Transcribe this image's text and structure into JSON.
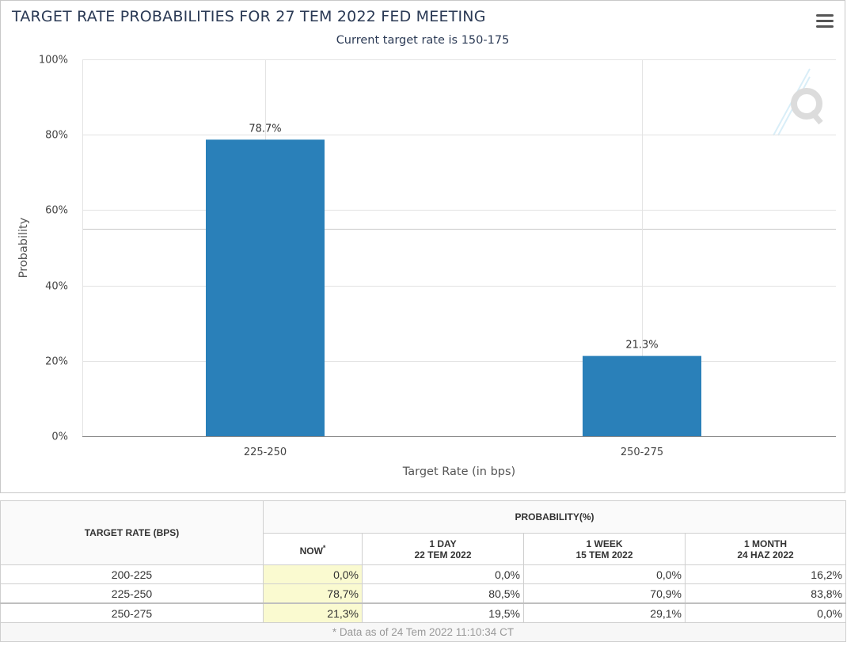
{
  "chart": {
    "title": "TARGET RATE PROBABILITIES FOR 27 TEM 2022 FED MEETING",
    "subtitle": "Current target rate is 150-175",
    "menu_icon": "hamburger-menu-icon",
    "watermark_icon": "q-logo-icon",
    "bar_color": "#2a80b9"
  },
  "chart_data": {
    "type": "bar",
    "title": "TARGET RATE PROBABILITIES FOR 27 TEM 2022 FED MEETING",
    "subtitle": "Current target rate is 150-175",
    "categories": [
      "225-250",
      "250-275"
    ],
    "values": [
      78.7,
      21.3
    ],
    "data_labels": [
      "78.7%",
      "21.3%"
    ],
    "xlabel": "Target Rate (in bps)",
    "ylabel": "Probability",
    "ylim": [
      0,
      100
    ],
    "yticks": [
      0,
      20,
      40,
      60,
      80,
      100
    ],
    "ytick_labels": [
      "0%",
      "20%",
      "40%",
      "60%",
      "80%",
      "100%"
    ],
    "grid": true,
    "legend": "none"
  },
  "table": {
    "header_rate": "TARGET RATE (BPS)",
    "header_probability": "PROBABILITY(%)",
    "columns": [
      {
        "line1": "NOW",
        "line2": "",
        "mark": "*"
      },
      {
        "line1": "1 DAY",
        "line2": "22 TEM 2022",
        "mark": ""
      },
      {
        "line1": "1 WEEK",
        "line2": "15 TEM 2022",
        "mark": ""
      },
      {
        "line1": "1 MONTH",
        "line2": "24 HAZ 2022",
        "mark": ""
      }
    ],
    "rows": [
      {
        "rate": "200-225",
        "values": [
          "0,0%",
          "0,0%",
          "0,0%",
          "16,2%"
        ]
      },
      {
        "rate": "225-250",
        "values": [
          "78,7%",
          "80,5%",
          "70,9%",
          "83,8%"
        ]
      },
      {
        "rate": "250-275",
        "values": [
          "21,3%",
          "19,5%",
          "29,1%",
          "0,0%"
        ]
      }
    ],
    "footnote": "* Data as of 24 Tem 2022 11:10:34 CT"
  }
}
